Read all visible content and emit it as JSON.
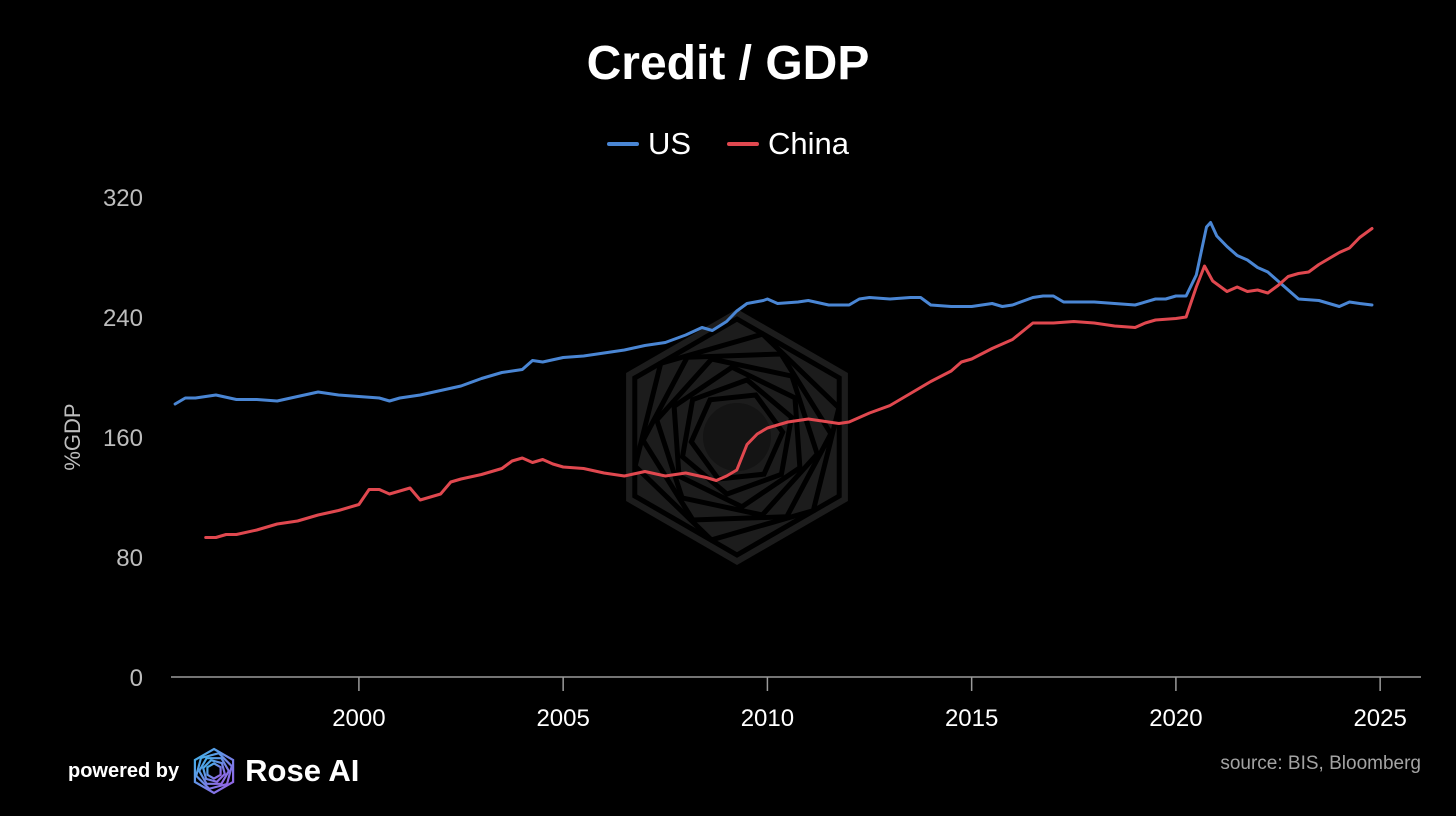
{
  "colors": {
    "background": "#000000",
    "us": "#4a86d4",
    "china": "#e0484f",
    "axis": "#9a9a9a",
    "tick_label_y": "#bdbdbd",
    "tick_label_x": "#ffffff",
    "source": "#a3a3a3"
  },
  "chart_data": {
    "type": "line",
    "title": "Credit / GDP",
    "ylabel": "%GDP",
    "xlabel": "",
    "xlim": [
      1995.4,
      2026.0
    ],
    "ylim": [
      0,
      320
    ],
    "x_ticks": [
      2000,
      2005,
      2010,
      2015,
      2020,
      2025
    ],
    "y_ticks": [
      0,
      80,
      160,
      240,
      320
    ],
    "grid": false,
    "legend": "top-center",
    "series": [
      {
        "name": "US",
        "color": "#4a86d4",
        "points": [
          [
            1995.5,
            182
          ],
          [
            1995.75,
            186
          ],
          [
            1996.0,
            186
          ],
          [
            1996.5,
            188
          ],
          [
            1997.0,
            185
          ],
          [
            1997.5,
            185
          ],
          [
            1998.0,
            184
          ],
          [
            1998.5,
            187
          ],
          [
            1999.0,
            190
          ],
          [
            1999.5,
            188
          ],
          [
            2000.0,
            187
          ],
          [
            2000.5,
            186
          ],
          [
            2000.75,
            184
          ],
          [
            2001.0,
            186
          ],
          [
            2001.5,
            188
          ],
          [
            2002.0,
            191
          ],
          [
            2002.5,
            194
          ],
          [
            2003.0,
            199
          ],
          [
            2003.5,
            203
          ],
          [
            2004.0,
            205
          ],
          [
            2004.25,
            211
          ],
          [
            2004.5,
            210
          ],
          [
            2005.0,
            213
          ],
          [
            2005.5,
            214
          ],
          [
            2006.0,
            216
          ],
          [
            2006.5,
            218
          ],
          [
            2007.0,
            221
          ],
          [
            2007.5,
            223
          ],
          [
            2008.0,
            228
          ],
          [
            2008.4,
            233
          ],
          [
            2008.65,
            231
          ],
          [
            2009.0,
            237
          ],
          [
            2009.25,
            244
          ],
          [
            2009.5,
            249
          ],
          [
            2009.9,
            251
          ],
          [
            2010.0,
            252
          ],
          [
            2010.25,
            249
          ],
          [
            2010.75,
            250
          ],
          [
            2011.0,
            251
          ],
          [
            2011.5,
            248
          ],
          [
            2012.0,
            248
          ],
          [
            2012.25,
            252
          ],
          [
            2012.5,
            253
          ],
          [
            2013.0,
            252
          ],
          [
            2013.5,
            253
          ],
          [
            2013.75,
            253
          ],
          [
            2014.0,
            248
          ],
          [
            2014.5,
            247
          ],
          [
            2015.0,
            247
          ],
          [
            2015.5,
            249
          ],
          [
            2015.75,
            247
          ],
          [
            2016.0,
            248
          ],
          [
            2016.5,
            253
          ],
          [
            2016.75,
            254
          ],
          [
            2017.0,
            254
          ],
          [
            2017.25,
            250
          ],
          [
            2017.5,
            250
          ],
          [
            2018.0,
            250
          ],
          [
            2018.5,
            249
          ],
          [
            2019.0,
            248
          ],
          [
            2019.5,
            252
          ],
          [
            2019.75,
            252
          ],
          [
            2020.0,
            254
          ],
          [
            2020.25,
            254
          ],
          [
            2020.5,
            268
          ],
          [
            2020.75,
            300
          ],
          [
            2020.85,
            303
          ],
          [
            2021.0,
            294
          ],
          [
            2021.25,
            287
          ],
          [
            2021.5,
            281
          ],
          [
            2021.75,
            278
          ],
          [
            2022.0,
            273
          ],
          [
            2022.25,
            270
          ],
          [
            2022.5,
            264
          ],
          [
            2022.75,
            258
          ],
          [
            2023.0,
            252
          ],
          [
            2023.5,
            251
          ],
          [
            2024.0,
            247
          ],
          [
            2024.25,
            250
          ],
          [
            2024.5,
            249
          ],
          [
            2024.8,
            248
          ]
        ]
      },
      {
        "name": "China",
        "color": "#e0484f",
        "points": [
          [
            1996.25,
            93
          ],
          [
            1996.5,
            93
          ],
          [
            1996.75,
            95
          ],
          [
            1997.0,
            95
          ],
          [
            1997.5,
            98
          ],
          [
            1998.0,
            102
          ],
          [
            1998.5,
            104
          ],
          [
            1999.0,
            108
          ],
          [
            1999.5,
            111
          ],
          [
            2000.0,
            115
          ],
          [
            2000.25,
            125
          ],
          [
            2000.5,
            125
          ],
          [
            2000.75,
            122
          ],
          [
            2001.0,
            124
          ],
          [
            2001.25,
            126
          ],
          [
            2001.5,
            118
          ],
          [
            2001.75,
            120
          ],
          [
            2002.0,
            122
          ],
          [
            2002.25,
            130
          ],
          [
            2002.5,
            132
          ],
          [
            2003.0,
            135
          ],
          [
            2003.5,
            139
          ],
          [
            2003.75,
            144
          ],
          [
            2004.0,
            146
          ],
          [
            2004.25,
            143
          ],
          [
            2004.5,
            145
          ],
          [
            2004.75,
            142
          ],
          [
            2005.0,
            140
          ],
          [
            2005.5,
            139
          ],
          [
            2006.0,
            136
          ],
          [
            2006.5,
            134
          ],
          [
            2007.0,
            137
          ],
          [
            2007.5,
            134
          ],
          [
            2008.0,
            136
          ],
          [
            2008.5,
            133
          ],
          [
            2008.75,
            131
          ],
          [
            2009.0,
            134
          ],
          [
            2009.25,
            138
          ],
          [
            2009.5,
            155
          ],
          [
            2009.75,
            162
          ],
          [
            2010.0,
            166
          ],
          [
            2010.5,
            170
          ],
          [
            2011.0,
            172
          ],
          [
            2011.5,
            170
          ],
          [
            2011.75,
            169
          ],
          [
            2012.0,
            170
          ],
          [
            2012.5,
            176
          ],
          [
            2013.0,
            181
          ],
          [
            2013.5,
            189
          ],
          [
            2014.0,
            197
          ],
          [
            2014.5,
            204
          ],
          [
            2014.75,
            210
          ],
          [
            2015.0,
            212
          ],
          [
            2015.5,
            219
          ],
          [
            2016.0,
            225
          ],
          [
            2016.5,
            236
          ],
          [
            2017.0,
            236
          ],
          [
            2017.5,
            237
          ],
          [
            2018.0,
            236
          ],
          [
            2018.5,
            234
          ],
          [
            2019.0,
            233
          ],
          [
            2019.25,
            236
          ],
          [
            2019.5,
            238
          ],
          [
            2020.0,
            239
          ],
          [
            2020.25,
            240
          ],
          [
            2020.5,
            260
          ],
          [
            2020.7,
            274
          ],
          [
            2020.9,
            264
          ],
          [
            2021.25,
            257
          ],
          [
            2021.5,
            260
          ],
          [
            2021.75,
            257
          ],
          [
            2022.0,
            258
          ],
          [
            2022.25,
            256
          ],
          [
            2022.5,
            261
          ],
          [
            2022.75,
            267
          ],
          [
            2023.0,
            269
          ],
          [
            2023.25,
            270
          ],
          [
            2023.5,
            275
          ],
          [
            2023.75,
            279
          ],
          [
            2024.0,
            283
          ],
          [
            2024.25,
            286
          ],
          [
            2024.5,
            293
          ],
          [
            2024.8,
            299
          ]
        ]
      }
    ]
  },
  "footer": {
    "powered_by": "powered by",
    "brand": "Rose AI",
    "brand_logo_icon": "rose-ai-logo-icon",
    "source": "source: BIS, Bloomberg"
  },
  "watermark_icon": "rose-ai-watermark-icon"
}
